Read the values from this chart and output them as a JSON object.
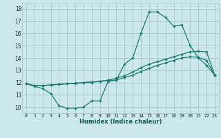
{
  "xlabel": "Humidex (Indice chaleur)",
  "bg_color": "#cce8ec",
  "grid_color": "#aacccc",
  "line_color": "#1a7a6e",
  "xlim": [
    -0.5,
    23.5
  ],
  "ylim": [
    9.5,
    18.5
  ],
  "xticks": [
    0,
    1,
    2,
    3,
    4,
    5,
    6,
    7,
    8,
    9,
    10,
    11,
    12,
    13,
    14,
    15,
    16,
    17,
    18,
    19,
    20,
    21,
    22,
    23
  ],
  "yticks": [
    10,
    11,
    12,
    13,
    14,
    15,
    16,
    17,
    18
  ],
  "series": [
    [
      11.9,
      11.7,
      11.5,
      11.1,
      10.1,
      9.9,
      9.9,
      10.0,
      10.5,
      10.5,
      12.1,
      12.2,
      13.5,
      14.0,
      16.0,
      17.75,
      17.75,
      17.3,
      16.6,
      16.7,
      15.0,
      14.0,
      13.4,
      12.6
    ],
    [
      11.9,
      11.75,
      11.75,
      11.8,
      11.85,
      11.9,
      11.9,
      12.0,
      12.0,
      12.1,
      12.15,
      12.2,
      12.4,
      12.6,
      12.9,
      13.15,
      13.4,
      13.6,
      13.8,
      14.0,
      14.1,
      14.05,
      13.8,
      12.6
    ],
    [
      11.9,
      11.75,
      11.75,
      11.8,
      11.85,
      11.9,
      11.95,
      12.0,
      12.05,
      12.1,
      12.2,
      12.35,
      12.55,
      12.85,
      13.2,
      13.5,
      13.7,
      13.9,
      14.1,
      14.3,
      14.5,
      14.55,
      14.5,
      12.6
    ]
  ]
}
